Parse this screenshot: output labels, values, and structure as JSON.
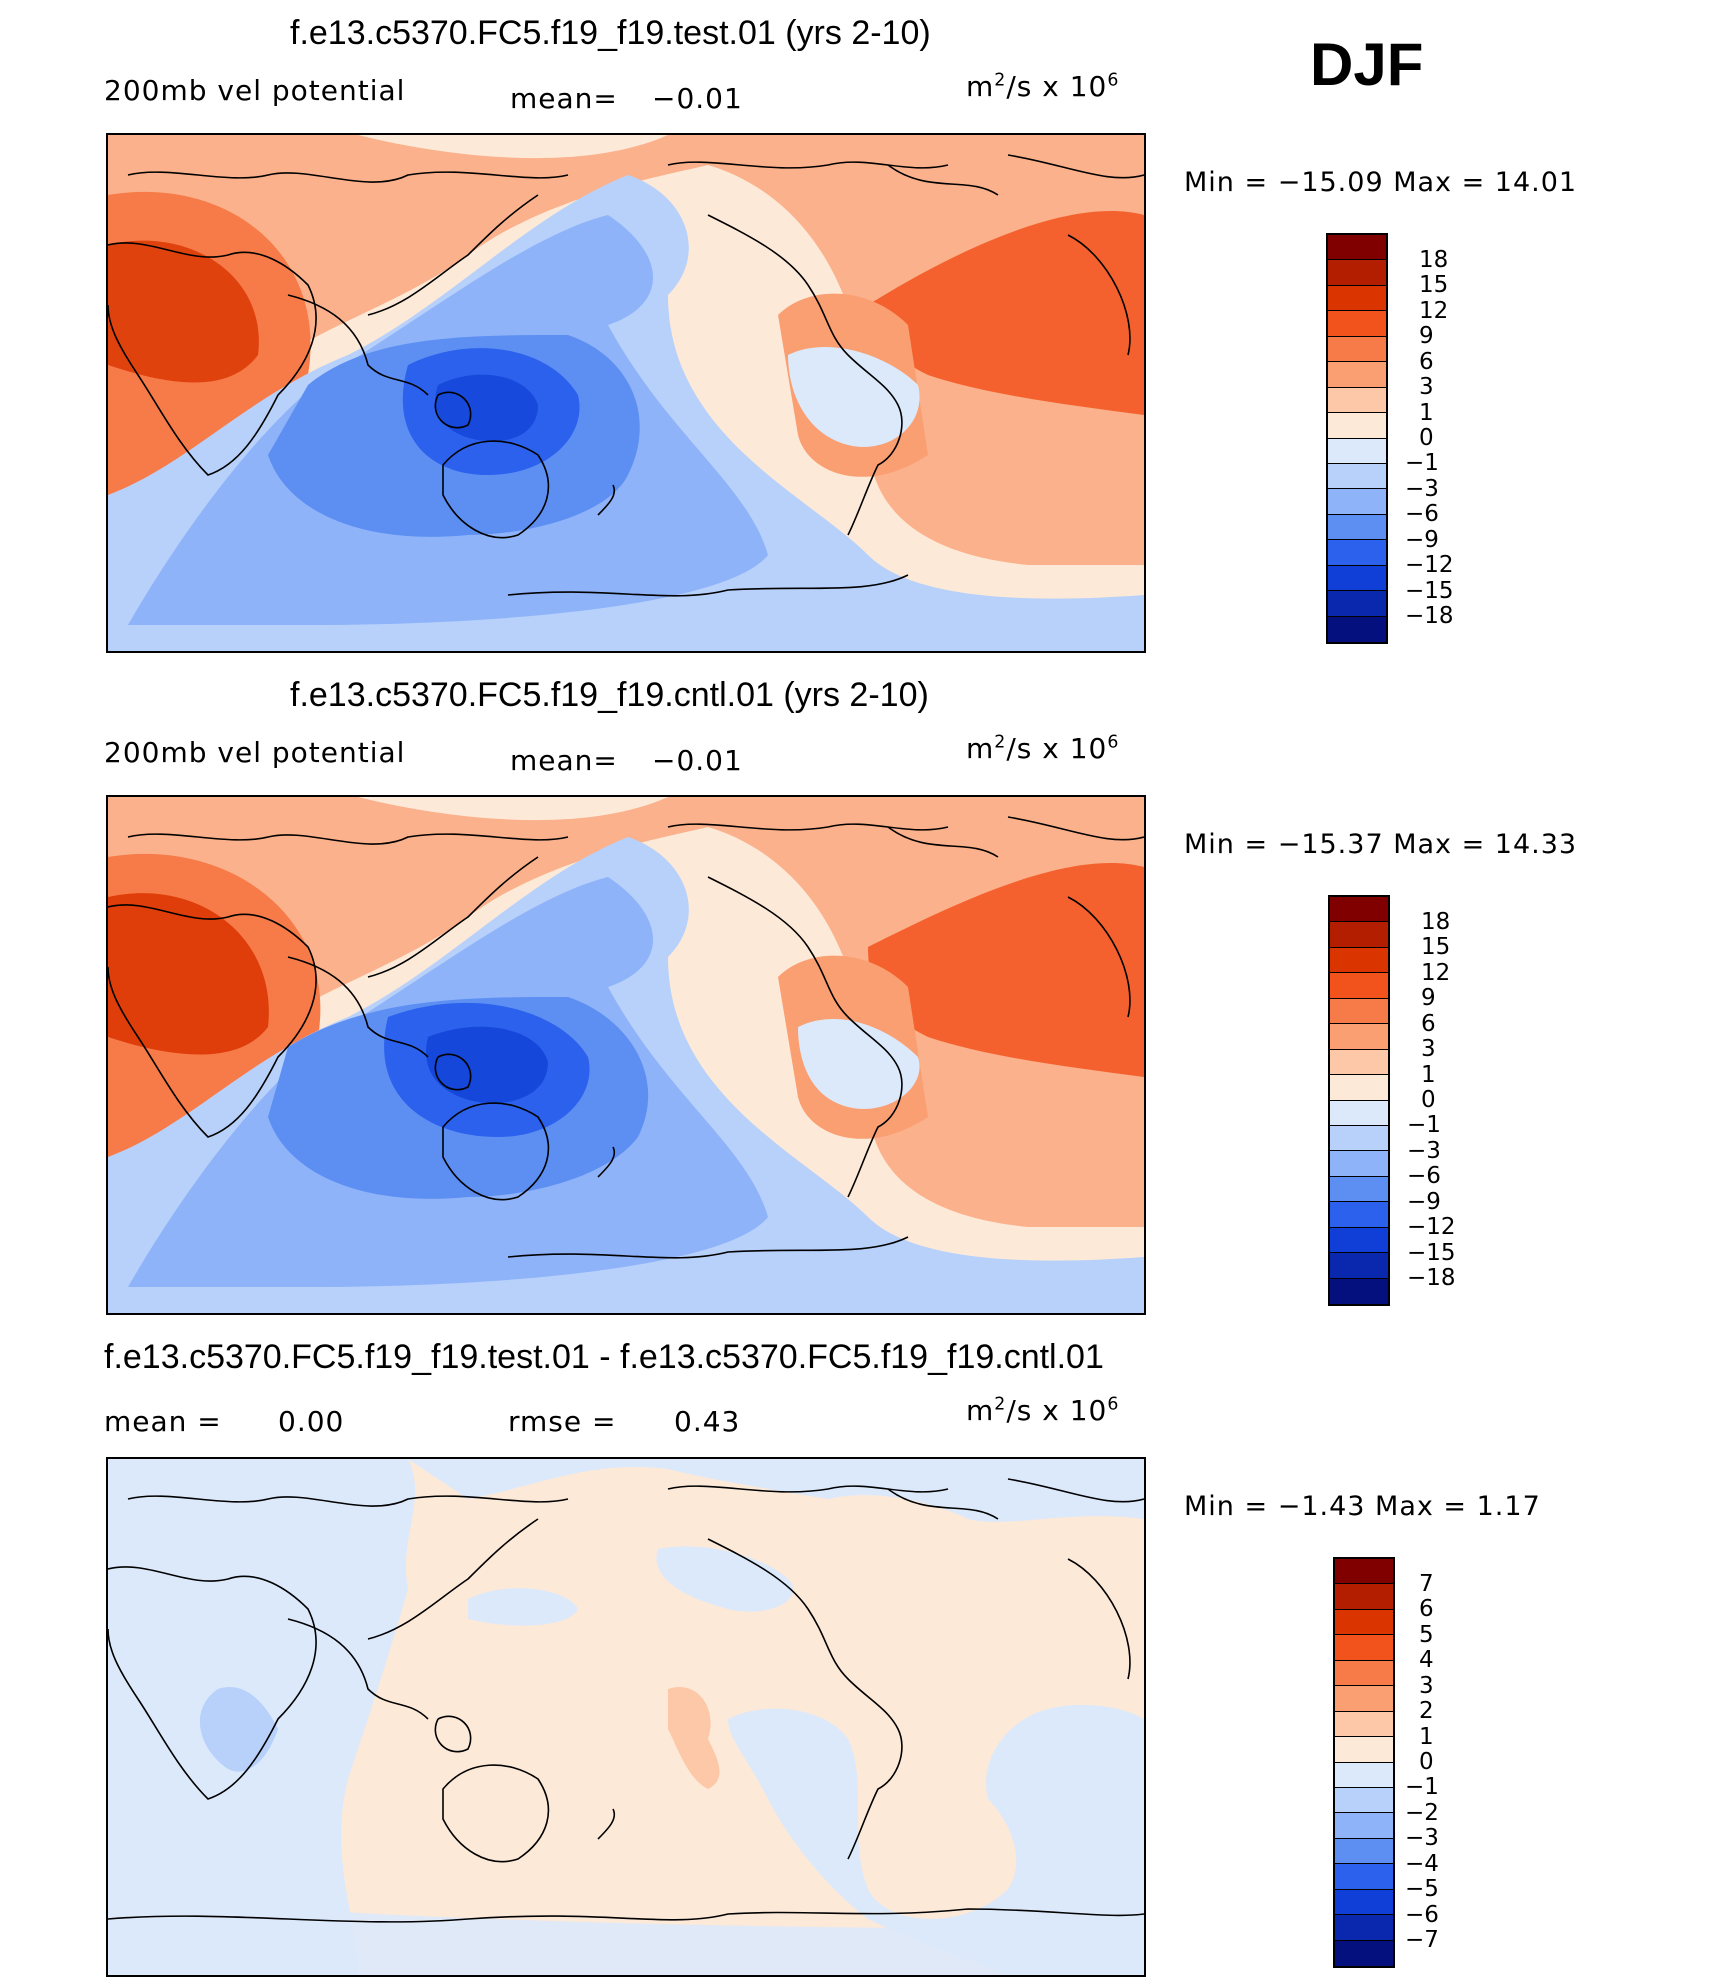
{
  "season": "DJF",
  "panels": [
    {
      "title": "f.e13.c5370.FC5.f19_f19.test.01 (yrs 2-10)",
      "left_label": "200mb vel potential",
      "stat_label": "mean=",
      "stat_value": "−0.01",
      "units_base": "m",
      "units_exp": "2",
      "units_mid": "/s x 10",
      "units_exp2": "6",
      "minmax": "Min = −15.09 Max =   14.01",
      "colorbar": {
        "colors": [
          "#800000",
          "#b31e00",
          "#da3400",
          "#f2531d",
          "#f77b48",
          "#fa9f72",
          "#fcc8a8",
          "#fde9d8",
          "#dbe9fb",
          "#b7d1fb",
          "#8fb3f9",
          "#5d8ff3",
          "#2b61ec",
          "#0f3fd6",
          "#0a28ae",
          "#03107e"
        ],
        "ticks": [
          "18",
          "15",
          "12",
          "9",
          "6",
          "3",
          "1",
          "0",
          "−1",
          "−3",
          "−6",
          "−9",
          "−12",
          "−15",
          "−18"
        ]
      }
    },
    {
      "title": "f.e13.c5370.FC5.f19_f19.cntl.01 (yrs 2-10)",
      "left_label": "200mb vel potential",
      "stat_label": "mean=",
      "stat_value": "−0.01",
      "units_base": "m",
      "units_exp": "2",
      "units_mid": "/s x 10",
      "units_exp2": "6",
      "minmax": "Min = −15.37 Max =   14.33",
      "colorbar": {
        "colors": [
          "#800000",
          "#b31e00",
          "#da3400",
          "#f2531d",
          "#f77b48",
          "#fa9f72",
          "#fcc8a8",
          "#fde9d8",
          "#dbe9fb",
          "#b7d1fb",
          "#8fb3f9",
          "#5d8ff3",
          "#2b61ec",
          "#0f3fd6",
          "#0a28ae",
          "#03107e"
        ],
        "ticks": [
          "18",
          "15",
          "12",
          "9",
          "6",
          "3",
          "1",
          "0",
          "−1",
          "−3",
          "−6",
          "−9",
          "−12",
          "−15",
          "−18"
        ]
      }
    },
    {
      "title": "f.e13.c5370.FC5.f19_f19.test.01 - f.e13.c5370.FC5.f19_f19.cntl.01",
      "left_label": "mean =",
      "left_value": "0.00",
      "stat_label": "rmse =",
      "stat_value": "0.43",
      "units_base": "m",
      "units_exp": "2",
      "units_mid": "/s x 10",
      "units_exp2": "6",
      "minmax": "Min =  −1.43 Max =    1.17",
      "colorbar": {
        "colors": [
          "#800000",
          "#b31e00",
          "#da3400",
          "#f2531d",
          "#f77b48",
          "#fa9f72",
          "#fcc8a8",
          "#fde9d8",
          "#dbe9fb",
          "#b7d1fb",
          "#8fb3f9",
          "#5d8ff3",
          "#2b61ec",
          "#0f3fd6",
          "#0a28ae",
          "#03107e"
        ],
        "ticks": [
          "7",
          "6",
          "5",
          "4",
          "3",
          "2",
          "1",
          "0",
          "−1",
          "−2",
          "−3",
          "−4",
          "−5",
          "−6",
          "−7"
        ]
      }
    }
  ]
}
